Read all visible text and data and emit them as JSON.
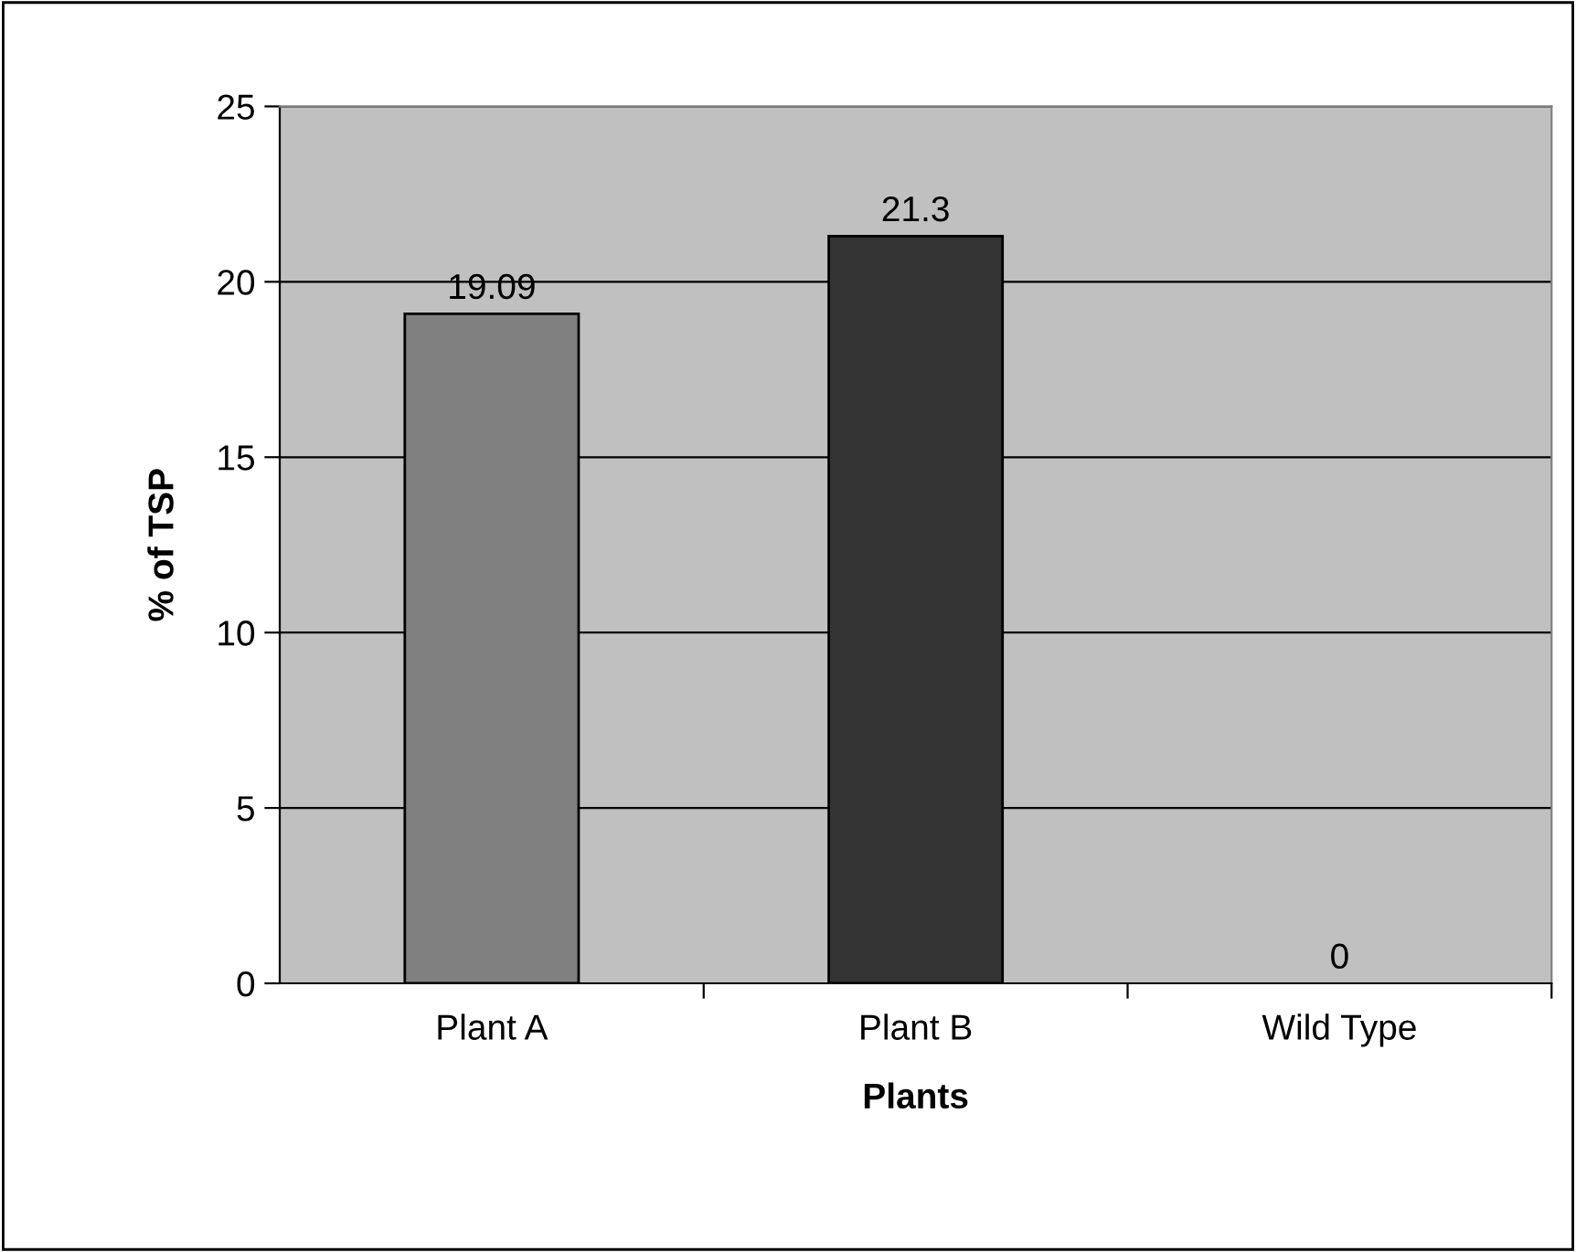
{
  "chart_data": {
    "type": "bar",
    "xlabel": "Plants",
    "ylabel": "% of TSP",
    "categories": [
      "Plant A",
      "Plant B",
      "Wild Type"
    ],
    "values": [
      19.09,
      21.3,
      0
    ],
    "colors": [
      "#808080",
      "#333333",
      "#ffffff"
    ],
    "ylim": [
      0,
      25
    ],
    "yticks": [
      0,
      5,
      10,
      15,
      20,
      25
    ],
    "grid": "y",
    "data_labels": true
  }
}
